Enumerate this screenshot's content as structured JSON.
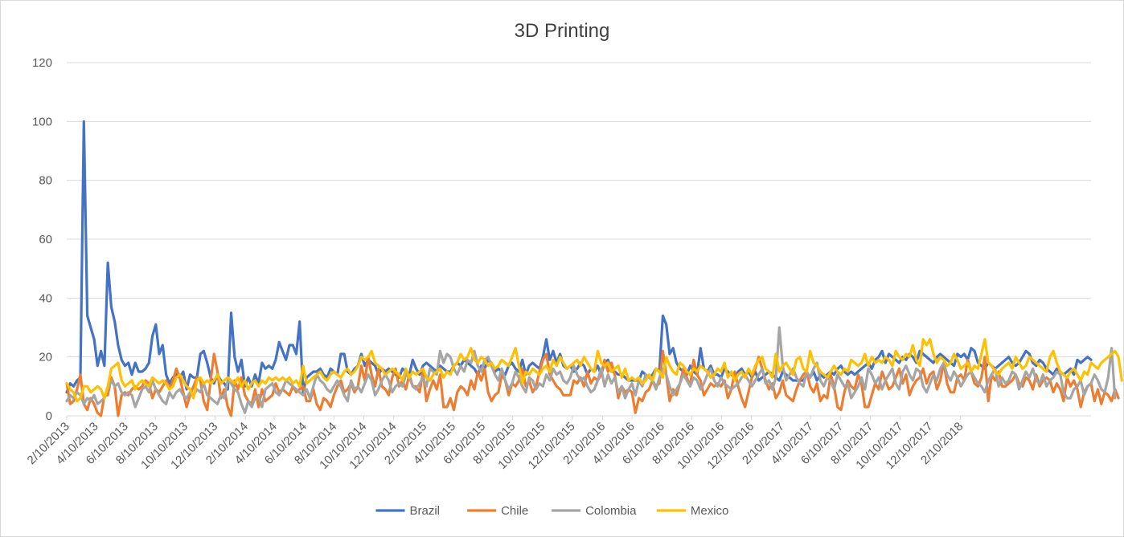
{
  "chart_data": {
    "type": "line",
    "title": "3D Printing",
    "ylim": [
      0,
      120
    ],
    "yticks": [
      0,
      20,
      40,
      60,
      80,
      100,
      120
    ],
    "grid": "horizontal",
    "legend": "bottom",
    "x_start": "2/10/2013",
    "x_end": "3/4/2018",
    "x_step": "weekly",
    "xtick_labels": [
      "2/10/2013",
      "4/10/2013",
      "6/10/2013",
      "8/10/2013",
      "10/10/2013",
      "12/10/2013",
      "2/10/2014",
      "4/10/2014",
      "6/10/2014",
      "8/10/2014",
      "10/10/2014",
      "12/10/2014",
      "2/10/2015",
      "4/10/2015",
      "6/10/2015",
      "8/10/2015",
      "10/10/2015",
      "12/10/2015",
      "2/10/2016",
      "4/10/2016",
      "6/10/2016",
      "8/10/2016",
      "10/10/2016",
      "12/10/2016",
      "2/10/2017",
      "4/10/2017",
      "6/10/2017",
      "8/10/2017",
      "10/10/2017",
      "12/10/2017",
      "2/10/2018"
    ],
    "series": [
      {
        "name": "Brazil",
        "color": "#4472C4",
        "values": [
          8,
          11,
          10,
          12,
          13,
          100,
          34,
          30,
          26,
          17,
          22,
          17,
          52,
          37,
          32,
          24,
          19,
          17,
          18,
          14,
          18,
          15,
          15,
          16,
          18,
          27,
          31,
          21,
          24,
          14,
          11,
          13,
          14,
          13,
          15,
          9,
          14,
          13,
          13,
          21,
          22,
          18,
          13,
          11,
          14,
          12,
          11,
          9,
          35,
          20,
          15,
          19,
          10,
          13,
          10,
          14,
          11,
          18,
          16,
          17,
          16,
          19,
          25,
          22,
          19,
          24,
          24,
          21,
          32,
          8,
          13,
          14,
          15,
          15,
          16,
          14,
          13,
          16,
          15,
          14,
          21,
          21,
          15,
          14,
          16,
          17,
          21,
          17,
          19,
          18,
          17,
          14,
          16,
          15,
          16,
          15,
          14,
          13,
          16,
          15,
          14,
          19,
          16,
          14,
          17,
          18,
          17,
          16,
          15,
          17,
          16,
          15,
          15,
          17,
          18,
          17,
          19,
          18,
          17,
          16,
          14,
          17,
          16,
          19,
          18,
          15,
          16,
          15,
          14,
          17,
          18,
          16,
          15,
          19,
          14,
          17,
          18,
          17,
          16,
          20,
          26,
          19,
          22,
          18,
          21,
          17,
          16,
          17,
          15,
          16,
          18,
          17,
          14,
          16,
          15,
          17,
          14,
          18,
          19,
          15,
          15,
          14,
          14,
          13,
          12,
          12,
          12,
          12,
          15,
          14,
          13,
          14,
          16,
          15,
          34,
          31,
          21,
          23,
          18,
          16,
          15,
          14,
          17,
          15,
          14,
          23,
          16,
          15,
          17,
          14,
          14,
          13,
          16,
          15,
          14,
          13,
          15,
          16,
          14,
          15,
          13,
          15,
          12,
          13,
          14,
          15,
          14,
          13,
          12,
          15,
          14,
          13,
          12,
          12,
          12,
          12,
          14,
          13,
          15,
          12,
          14,
          13,
          14,
          15,
          14,
          16,
          17,
          15,
          14,
          15,
          14,
          15,
          16,
          17,
          18,
          16,
          19,
          20,
          22,
          18,
          21,
          20,
          19,
          18,
          20,
          19,
          21,
          20,
          18,
          22,
          21,
          20,
          19,
          18,
          20,
          21,
          20,
          19,
          18,
          17,
          21,
          20,
          21,
          19,
          23,
          22,
          18,
          17,
          16,
          18,
          17,
          16,
          17,
          18,
          19,
          20,
          18,
          17,
          18,
          20,
          22,
          21,
          18,
          17,
          19,
          18,
          16,
          15,
          14,
          16,
          15,
          14,
          15,
          16,
          14,
          19,
          18,
          19,
          20,
          19
        ]
      },
      {
        "name": "Chile",
        "color": "#ED7D31",
        "values": [
          11,
          4,
          5,
          9,
          14,
          4,
          2,
          6,
          4,
          1,
          0,
          7,
          7,
          13,
          10,
          0,
          7,
          8,
          7,
          9,
          10,
          9,
          10,
          12,
          11,
          6,
          9,
          8,
          10,
          12,
          9,
          12,
          16,
          13,
          8,
          3,
          7,
          10,
          13,
          12,
          5,
          2,
          12,
          21,
          15,
          6,
          9,
          3,
          0,
          12,
          9,
          13,
          7,
          5,
          4,
          9,
          3,
          9,
          5,
          6,
          7,
          11,
          8,
          9,
          8,
          7,
          10,
          8,
          9,
          10,
          5,
          5,
          9,
          4,
          2,
          6,
          5,
          3,
          7,
          10,
          12,
          8,
          9,
          11,
          8,
          10,
          17,
          12,
          20,
          14,
          10,
          16,
          10,
          9,
          7,
          13,
          16,
          10,
          12,
          9,
          14,
          10,
          10,
          8,
          15,
          5,
          9,
          12,
          9,
          14,
          3,
          3,
          6,
          2,
          8,
          10,
          9,
          7,
          12,
          9,
          15,
          12,
          16,
          8,
          5,
          7,
          8,
          14,
          12,
          7,
          11,
          10,
          12,
          16,
          10,
          12,
          8,
          10,
          15,
          19,
          21,
          14,
          12,
          10,
          9,
          7,
          7,
          7,
          12,
          11,
          13,
          10,
          15,
          11,
          13,
          12,
          14,
          19,
          15,
          18,
          14,
          6,
          10,
          8,
          9,
          8,
          1,
          6,
          5,
          8,
          9,
          12,
          10,
          11,
          22,
          14,
          5,
          9,
          7,
          11,
          16,
          13,
          10,
          19,
          14,
          12,
          7,
          9,
          11,
          10,
          11,
          10,
          12,
          6,
          9,
          15,
          10,
          6,
          3,
          8,
          13,
          16,
          20,
          16,
          12,
          9,
          11,
          6,
          8,
          12,
          7,
          6,
          5,
          9,
          12,
          14,
          15,
          10,
          8,
          11,
          5,
          7,
          6,
          14,
          10,
          3,
          2,
          8,
          12,
          10,
          9,
          14,
          11,
          3,
          3,
          7,
          11,
          9,
          15,
          12,
          9,
          10,
          13,
          16,
          11,
          14,
          7,
          10,
          12,
          13,
          16,
          11,
          14,
          15,
          9,
          12,
          18,
          11,
          8,
          8,
          13,
          14,
          12,
          19,
          15,
          11,
          10,
          13,
          20,
          5,
          14,
          12,
          15,
          10,
          10,
          11,
          12,
          14,
          11,
          10,
          13,
          12,
          9,
          14,
          10,
          12,
          13,
          12,
          8,
          11,
          9,
          5,
          13,
          10,
          12,
          9,
          3,
          8,
          10,
          11,
          5,
          9,
          4,
          8,
          7,
          5,
          9,
          6
        ]
      },
      {
        "name": "Colombia",
        "color": "#A5A5A5",
        "values": [
          5,
          7,
          6,
          8,
          7,
          4,
          6,
          5,
          7,
          4,
          5,
          6,
          9,
          12,
          10,
          11,
          8,
          7,
          8,
          7,
          3,
          6,
          9,
          10,
          8,
          12,
          9,
          7,
          5,
          4,
          8,
          6,
          8,
          9,
          7,
          6,
          8,
          7,
          9,
          8,
          11,
          7,
          6,
          5,
          4,
          7,
          6,
          12,
          11,
          9,
          8,
          4,
          1,
          5,
          3,
          6,
          7,
          3,
          9,
          10,
          11,
          8,
          7,
          9,
          12,
          11,
          10,
          9,
          8,
          7,
          9,
          6,
          10,
          14,
          12,
          11,
          9,
          8,
          10,
          12,
          10,
          7,
          5,
          12,
          9,
          10,
          8,
          11,
          14,
          12,
          7,
          9,
          12,
          14,
          12,
          8,
          10,
          11,
          10,
          14,
          13,
          10,
          9,
          11,
          13,
          10,
          16,
          15,
          14,
          22,
          18,
          21,
          20,
          16,
          14,
          17,
          15,
          19,
          18,
          22,
          17,
          15,
          19,
          20,
          17,
          14,
          12,
          16,
          12,
          9,
          11,
          15,
          13,
          10,
          8,
          13,
          12,
          9,
          11,
          10,
          14,
          12,
          16,
          14,
          15,
          12,
          11,
          13,
          17,
          14,
          12,
          13,
          10,
          8,
          9,
          12,
          16,
          10,
          14,
          11,
          13,
          8,
          10,
          6,
          9,
          11,
          7,
          12,
          10,
          14,
          13,
          12,
          9,
          13,
          16,
          14,
          10,
          7,
          9,
          11,
          14,
          12,
          10,
          13,
          12,
          9,
          11,
          14,
          16,
          12,
          10,
          13,
          11,
          10,
          9,
          10,
          11,
          13,
          14,
          12,
          10,
          12,
          14,
          16,
          11,
          12,
          9,
          13,
          30,
          17,
          12,
          14,
          16,
          13,
          11,
          10,
          15,
          13,
          16,
          18,
          12,
          10,
          13,
          12,
          9,
          14,
          12,
          10,
          11,
          6,
          8,
          10,
          13,
          9,
          16,
          14,
          11,
          13,
          9,
          12,
          14,
          16,
          11,
          9,
          15,
          17,
          14,
          12,
          16,
          15,
          10,
          8,
          11,
          14,
          12,
          16,
          18,
          14,
          12,
          15,
          13,
          10,
          12,
          14,
          15,
          13,
          11,
          10,
          8,
          12,
          14,
          16,
          10,
          13,
          11,
          12,
          15,
          14,
          9,
          12,
          15,
          13,
          16,
          12,
          11,
          14,
          10,
          12,
          13,
          15,
          14,
          8,
          6,
          6,
          9,
          10,
          12,
          7,
          10,
          11,
          14,
          12,
          9,
          8,
          13,
          23,
          6
        ]
      },
      {
        "name": "Mexico",
        "color": "#FFC000",
        "values": [
          11,
          9,
          8,
          5,
          6,
          10,
          10,
          8,
          9,
          10,
          9,
          6,
          10,
          16,
          17,
          18,
          12,
          10,
          11,
          12,
          9,
          11,
          12,
          11,
          10,
          13,
          12,
          11,
          12,
          11,
          9,
          10,
          13,
          14,
          12,
          10,
          9,
          6,
          12,
          13,
          11,
          12,
          11,
          12,
          14,
          11,
          12,
          13,
          12,
          11,
          13,
          10,
          12,
          9,
          11,
          12,
          10,
          12,
          11,
          13,
          12,
          13,
          12,
          13,
          12,
          13,
          11,
          12,
          10,
          17,
          11,
          12,
          13,
          14,
          15,
          13,
          12,
          14,
          15,
          14,
          13,
          15,
          16,
          14,
          15,
          17,
          20,
          19,
          20,
          22,
          18,
          17,
          16,
          14,
          15,
          16,
          15,
          14,
          12,
          16,
          13,
          15,
          14,
          15,
          16,
          13,
          12,
          14,
          15,
          16,
          13,
          15,
          14,
          17,
          18,
          21,
          19,
          20,
          23,
          19,
          18,
          20,
          19,
          17,
          18,
          16,
          17,
          19,
          18,
          17,
          20,
          23,
          17,
          11,
          15,
          14,
          16,
          15,
          14,
          16,
          17,
          15,
          19,
          17,
          20,
          18,
          16,
          17,
          18,
          19,
          17,
          20,
          18,
          16,
          15,
          22,
          18,
          17,
          18,
          15,
          16,
          17,
          13,
          16,
          12,
          13,
          12,
          13,
          11,
          12,
          14,
          12,
          16,
          15,
          13,
          20,
          17,
          15,
          14,
          18,
          17,
          15,
          14,
          16,
          15,
          17,
          16,
          15,
          13,
          14,
          16,
          15,
          18,
          13,
          15,
          12,
          14,
          15,
          13,
          16,
          14,
          17,
          19,
          20,
          16,
          15,
          13,
          21,
          15,
          17,
          18,
          16,
          14,
          19,
          20,
          16,
          15,
          22,
          18,
          17,
          15,
          14,
          13,
          15,
          17,
          15,
          14,
          16,
          15,
          19,
          18,
          17,
          18,
          21,
          17,
          20,
          18,
          19,
          18,
          20,
          19,
          17,
          22,
          20,
          19,
          21,
          20,
          24,
          19,
          17,
          26,
          24,
          26,
          21,
          18,
          20,
          19,
          17,
          18,
          21,
          19,
          16,
          17,
          18,
          15,
          17,
          16,
          21,
          26,
          18,
          17,
          15,
          14,
          16,
          17,
          18,
          16,
          20,
          18,
          16,
          17,
          20,
          19,
          18,
          17,
          16,
          15,
          20,
          22,
          18,
          15,
          14,
          13,
          15,
          16,
          14,
          12,
          15,
          14,
          18,
          17,
          16,
          18,
          19,
          20,
          21,
          22,
          20,
          12
        ]
      }
    ]
  }
}
